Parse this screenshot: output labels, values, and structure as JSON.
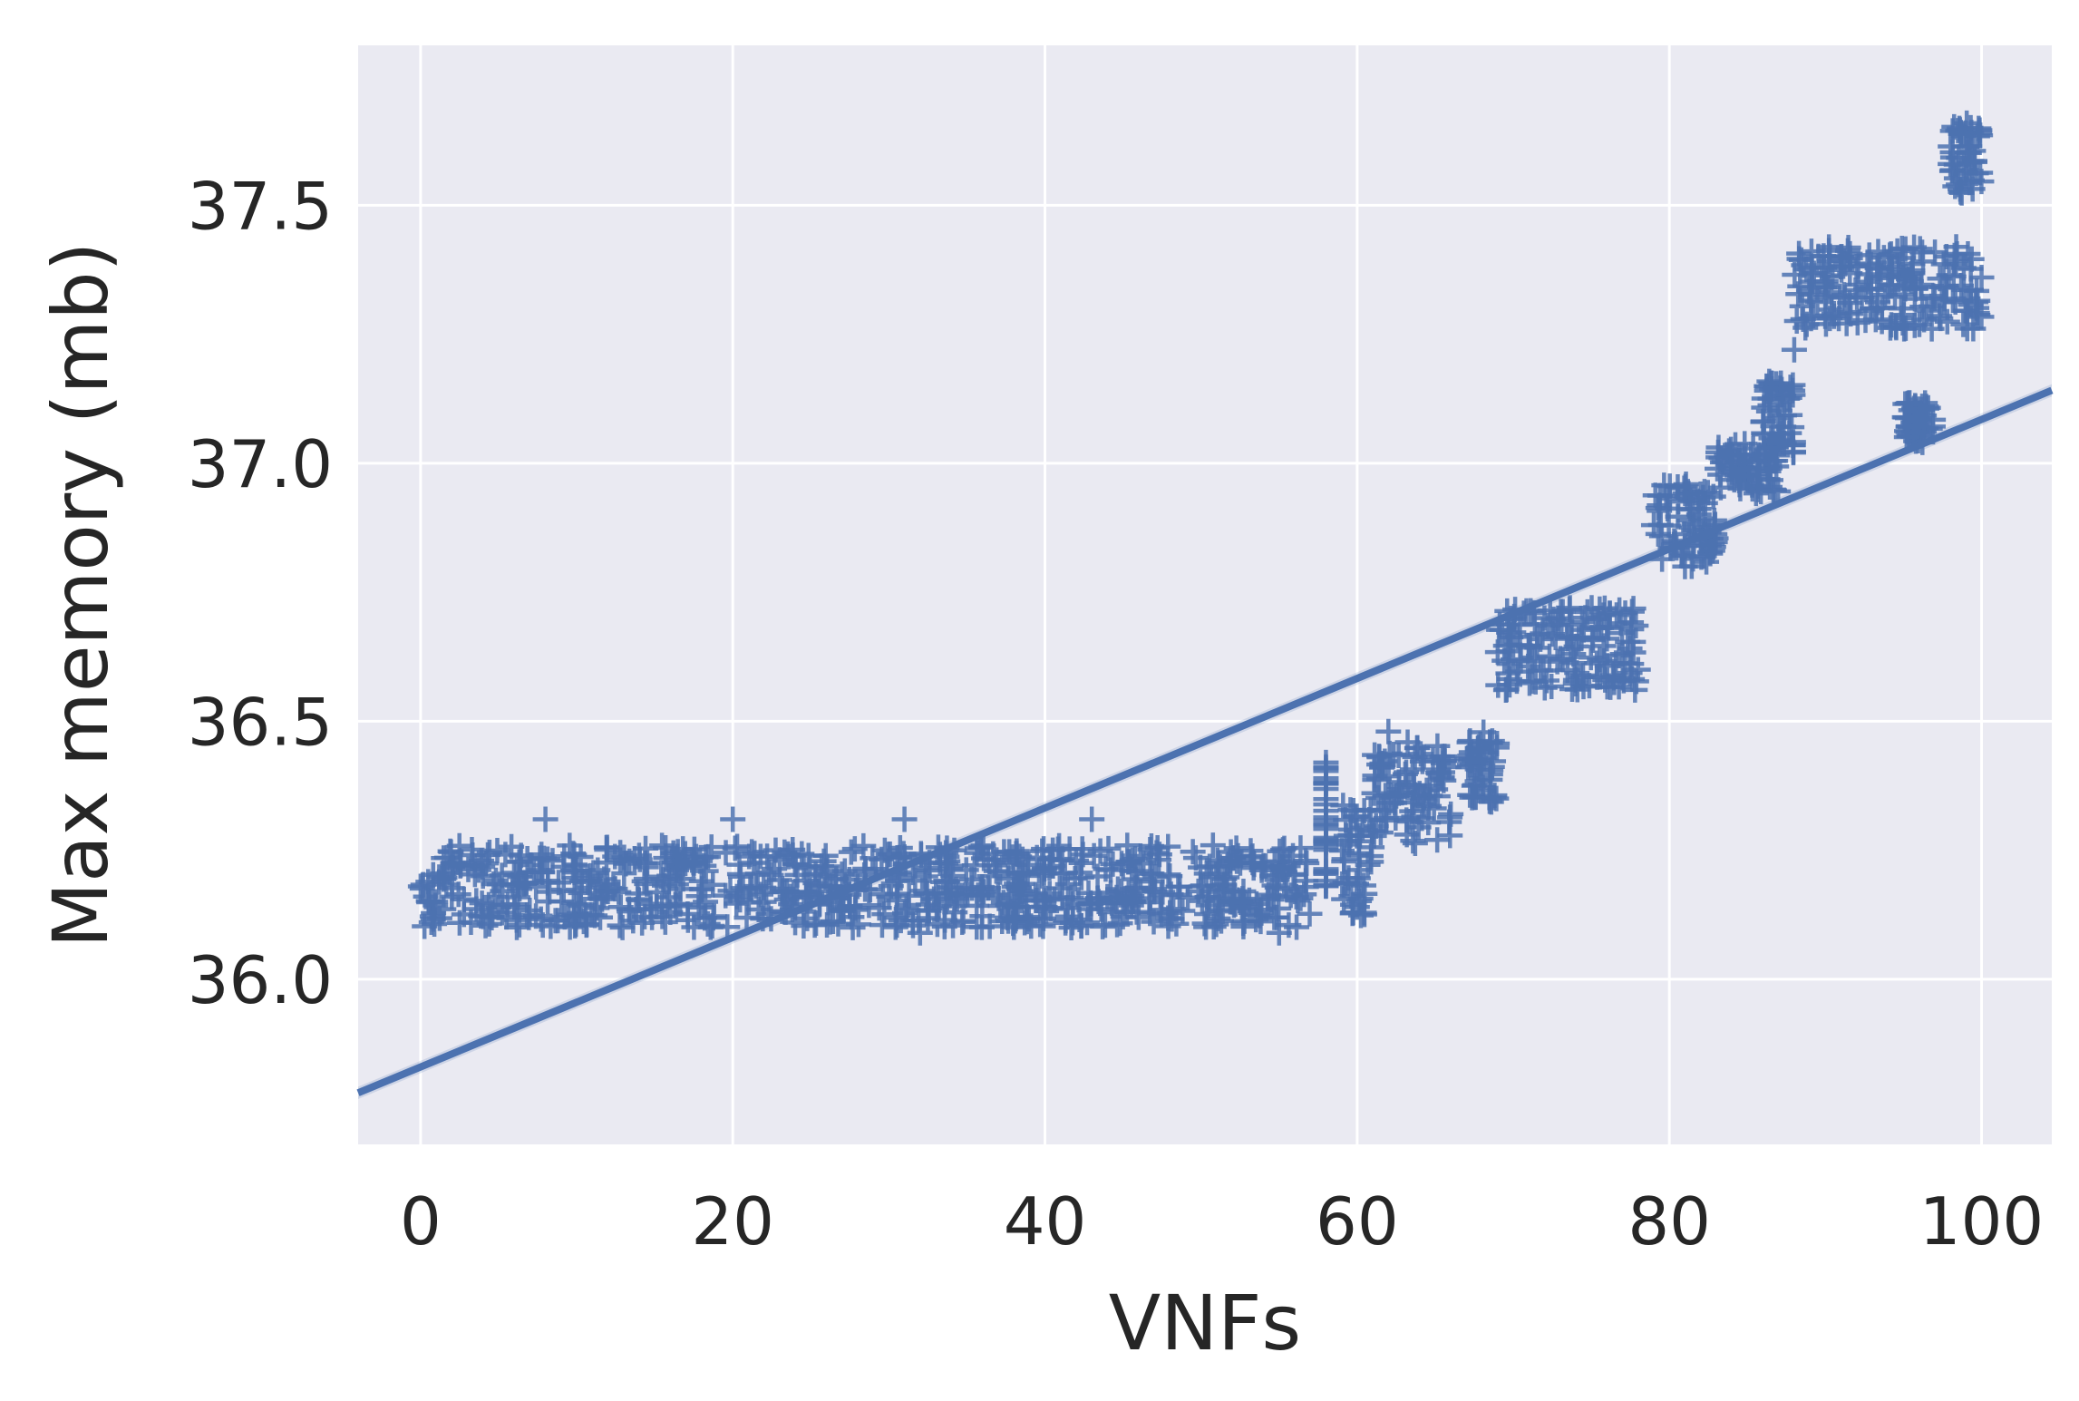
{
  "chart_data": {
    "type": "scatter",
    "title": "",
    "xlabel": "VNFs",
    "ylabel": "Max memory (mb)",
    "xlim": [
      -4,
      104.5
    ],
    "ylim": [
      35.68,
      37.81
    ],
    "x_ticks": [
      0,
      20,
      40,
      60,
      80,
      100
    ],
    "y_ticks": [
      36.0,
      36.5,
      37.0,
      37.5
    ],
    "x_tick_labels": [
      "0",
      "20",
      "40",
      "60",
      "80",
      "100"
    ],
    "y_tick_labels": [
      "36.0",
      "36.5",
      "37.0",
      "37.5"
    ],
    "grid": true,
    "background_color": "#eaeaf2",
    "grid_color": "#ffffff",
    "series_color": "#4c72b0",
    "marker": "plus",
    "regression_line": {
      "intercept": 35.83,
      "slope": 0.01255
    },
    "clusters": [
      {
        "x_start": 0,
        "x_end": 57,
        "y_low": 36.1,
        "y_high": 36.26
      },
      {
        "x_start": 58,
        "x_end": 58,
        "y_low": 36.18,
        "y_high": 36.42
      },
      {
        "x_start": 59,
        "x_end": 61,
        "y_low": 36.12,
        "y_high": 36.34
      },
      {
        "x_start": 61,
        "x_end": 66,
        "y_low": 36.26,
        "y_high": 36.46
      },
      {
        "x_start": 67,
        "x_end": 69,
        "y_low": 36.34,
        "y_high": 36.48
      },
      {
        "x_start": 69,
        "x_end": 78,
        "y_low": 36.56,
        "y_high": 36.72
      },
      {
        "x_start": 79,
        "x_end": 83,
        "y_low": 36.8,
        "y_high": 36.96
      },
      {
        "x_start": 83,
        "x_end": 87,
        "y_low": 36.94,
        "y_high": 37.04
      },
      {
        "x_start": 86,
        "x_end": 88,
        "y_low": 37.02,
        "y_high": 37.16
      },
      {
        "x_start": 88,
        "x_end": 100,
        "y_low": 37.26,
        "y_high": 37.42
      },
      {
        "x_start": 95,
        "x_end": 97,
        "y_low": 37.04,
        "y_high": 37.12
      },
      {
        "x_start": 98,
        "x_end": 100,
        "y_low": 37.52,
        "y_high": 37.66
      }
    ],
    "sampled_points": [
      [
        0,
        36.18
      ],
      [
        2,
        36.16
      ],
      [
        4,
        36.2
      ],
      [
        6,
        36.14
      ],
      [
        8,
        36.31
      ],
      [
        10,
        36.22
      ],
      [
        12,
        36.17
      ],
      [
        14,
        36.24
      ],
      [
        16,
        36.13
      ],
      [
        18,
        36.19
      ],
      [
        20,
        36.31
      ],
      [
        22,
        36.15
      ],
      [
        24,
        36.11
      ],
      [
        26,
        36.21
      ],
      [
        28,
        36.18
      ],
      [
        30,
        36.16
      ],
      [
        31,
        36.31
      ],
      [
        32,
        36.09
      ],
      [
        34,
        36.22
      ],
      [
        36,
        36.17
      ],
      [
        38,
        36.2
      ],
      [
        40,
        36.14
      ],
      [
        42,
        36.23
      ],
      [
        43,
        36.31
      ],
      [
        44,
        36.16
      ],
      [
        46,
        36.12
      ],
      [
        48,
        36.2
      ],
      [
        50,
        36.18
      ],
      [
        52,
        36.15
      ],
      [
        54,
        36.22
      ],
      [
        55,
        36.09
      ],
      [
        56,
        36.17
      ],
      [
        58,
        36.42
      ],
      [
        60,
        36.14
      ],
      [
        62,
        36.48
      ],
      [
        64,
        36.36
      ],
      [
        66,
        36.32
      ],
      [
        68,
        36.44
      ],
      [
        70,
        36.62
      ],
      [
        72,
        36.7
      ],
      [
        74,
        36.58
      ],
      [
        76,
        36.66
      ],
      [
        78,
        36.6
      ],
      [
        79,
        36.88
      ],
      [
        81,
        36.8
      ],
      [
        82,
        36.94
      ],
      [
        84,
        36.99
      ],
      [
        86,
        37.08
      ],
      [
        88,
        37.22
      ],
      [
        89,
        37.34
      ],
      [
        91,
        37.4
      ],
      [
        93,
        37.3
      ],
      [
        95,
        37.36
      ],
      [
        96,
        37.08
      ],
      [
        97,
        37.32
      ],
      [
        98,
        37.58
      ],
      [
        99,
        37.64
      ],
      [
        100,
        37.36
      ]
    ]
  }
}
